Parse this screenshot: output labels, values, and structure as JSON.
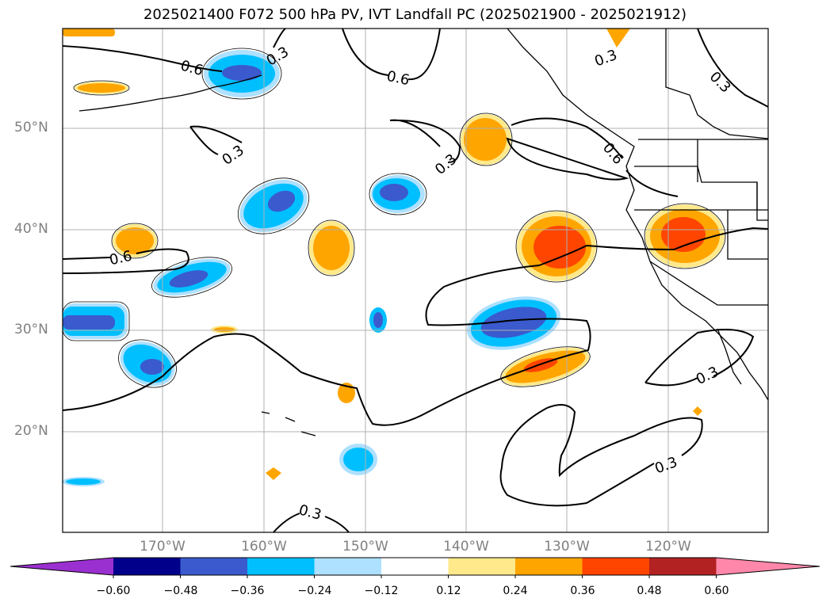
{
  "title": "2025021400 F072 500 hPa PV, IVT Landfall PC (2025021900 - 2025021912)",
  "lat_labels": [
    "50°N",
    "40°N",
    "30°N",
    "20°N"
  ],
  "lon_labels": [
    "170°W",
    "160°W",
    "150°W",
    "140°W",
    "130°W",
    "120°W"
  ],
  "contour_labels": [
    "0.6",
    "0.3",
    "0.6",
    "0.3",
    "0.3",
    "0.3",
    "0.6",
    "0.3",
    "0.6",
    "0.3",
    "0.3",
    "0.3"
  ],
  "colorbar": {
    "labels": [
      "−0.60",
      "−0.48",
      "−0.36",
      "−0.24",
      "−0.12",
      "0.12",
      "0.24",
      "0.36",
      "0.48",
      "0.60"
    ],
    "colors": [
      "#9b30d0",
      "#00008b",
      "#3a5acd",
      "#00bfff",
      "#aee0ff",
      "#ffffff",
      "#ffe98a",
      "#ffa500",
      "#ff4500",
      "#b22222",
      "#ff88aa"
    ]
  }
}
